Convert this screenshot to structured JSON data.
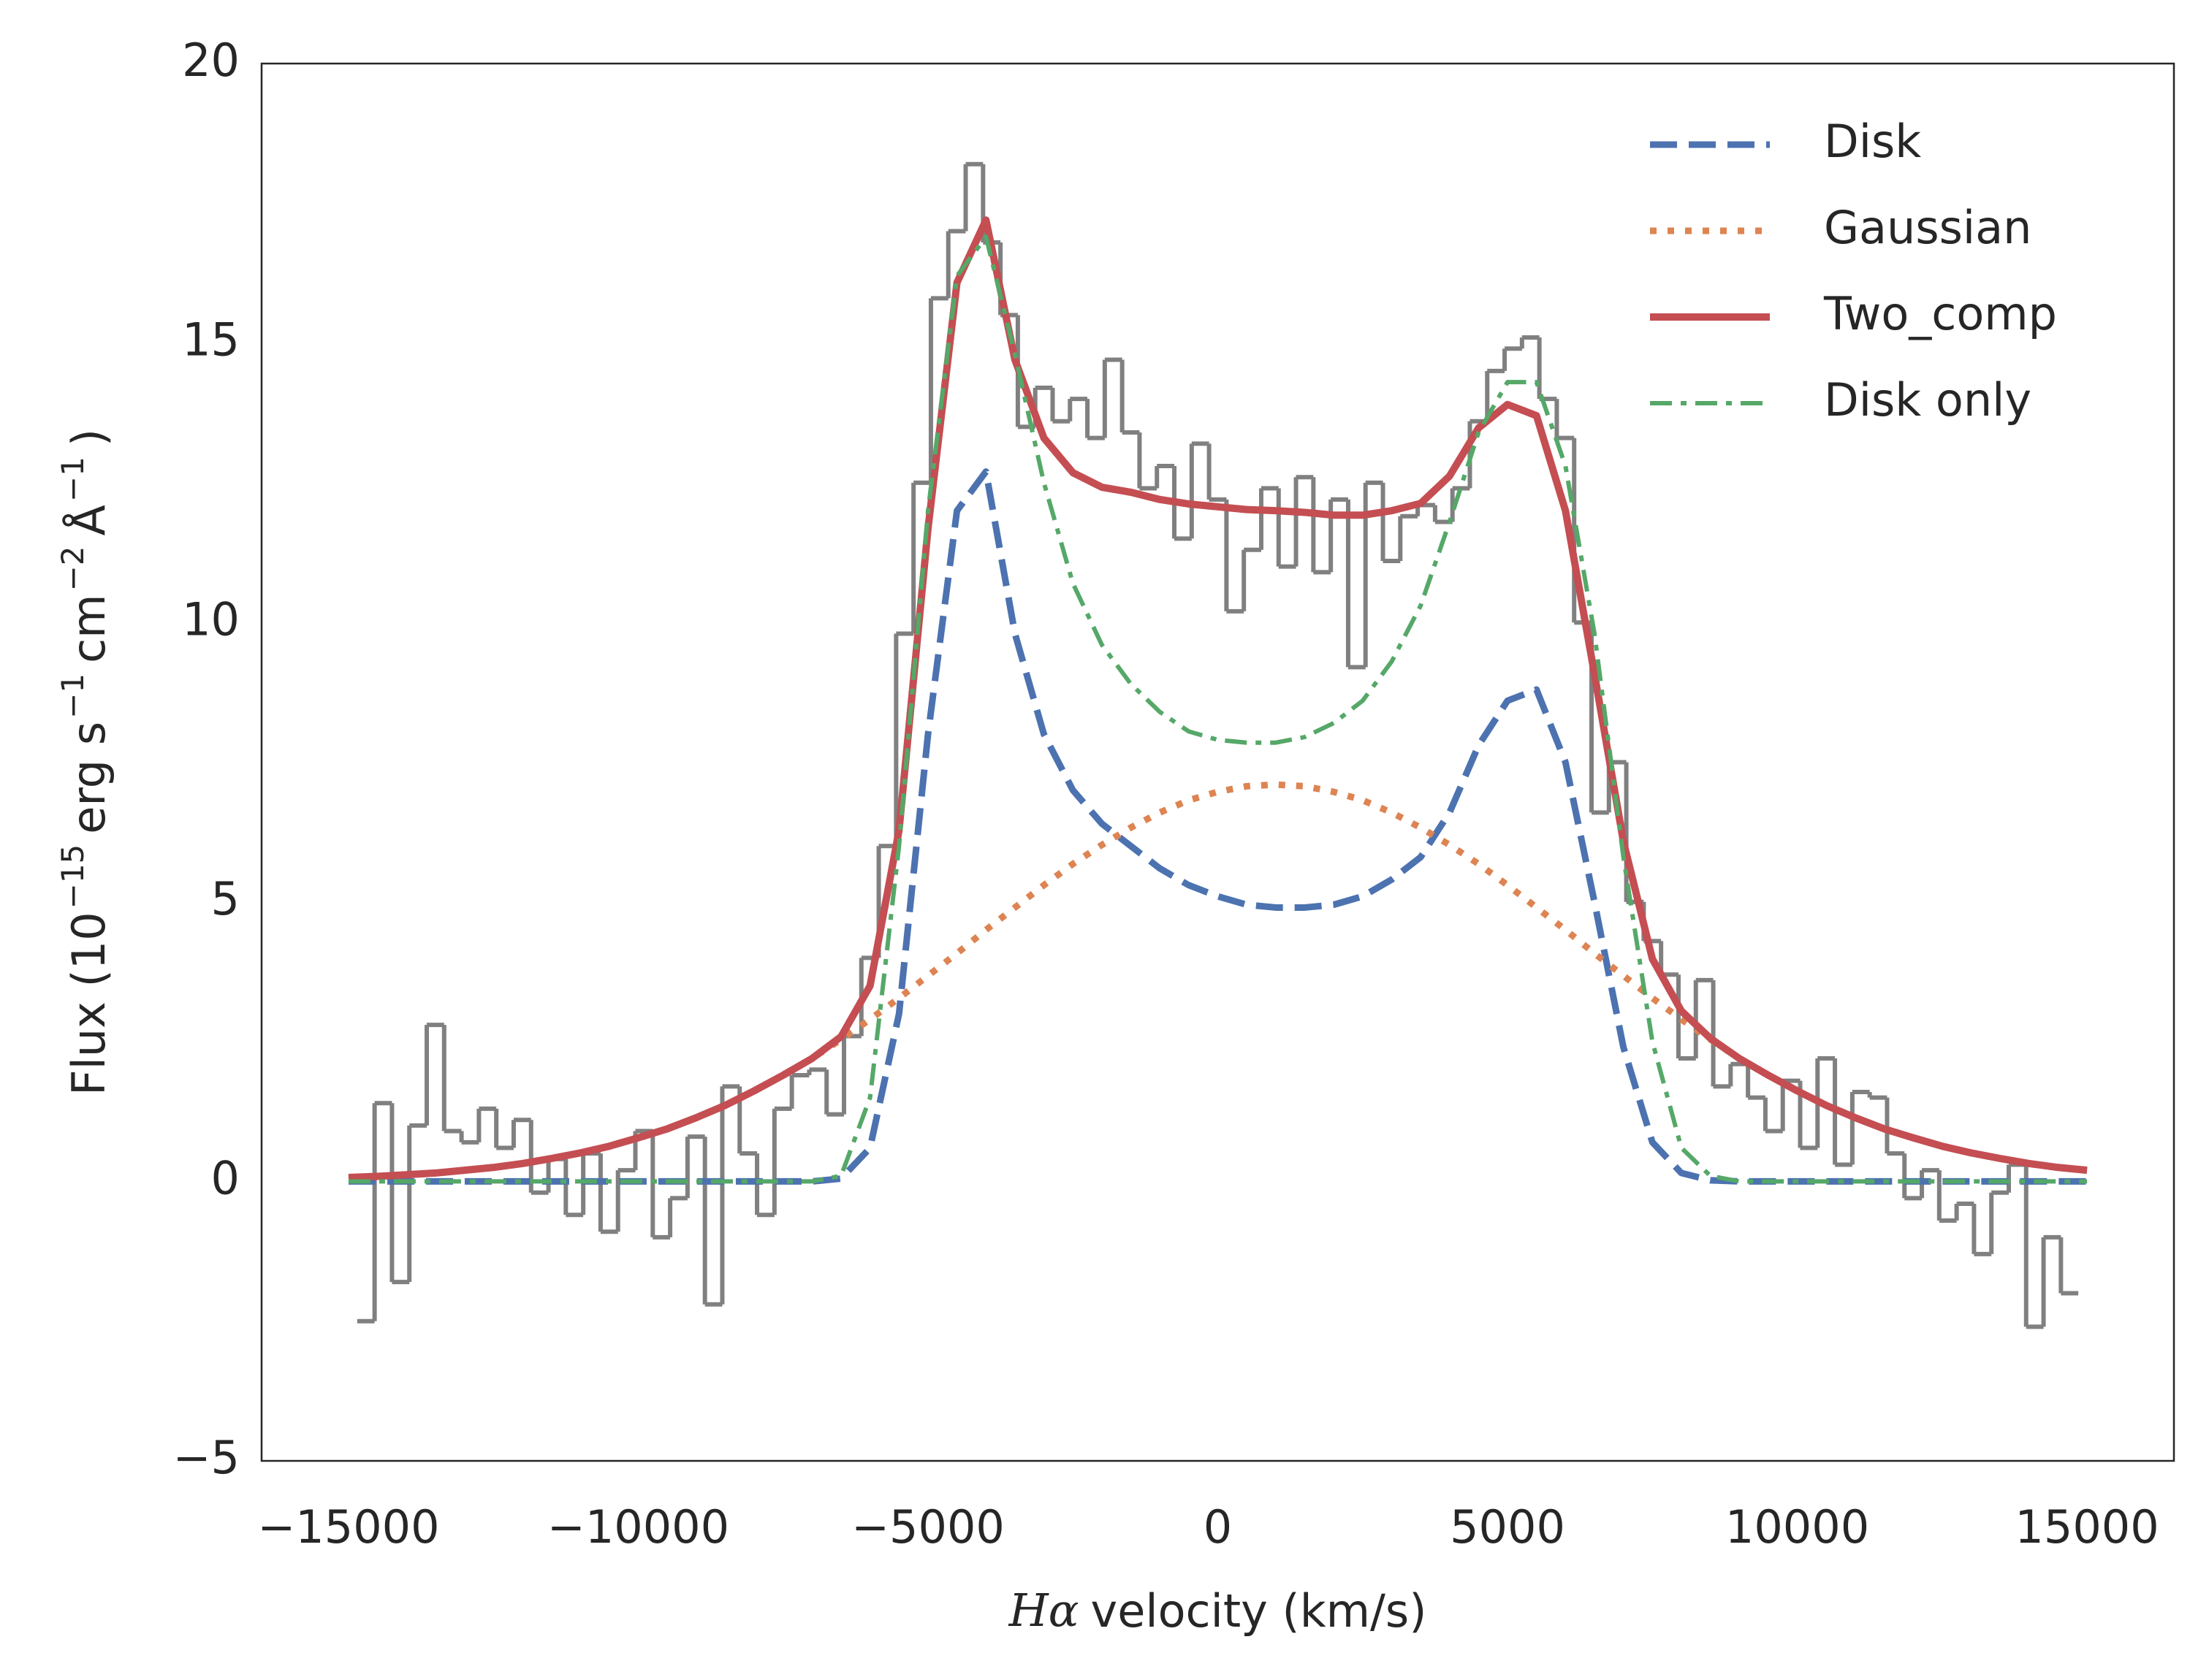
{
  "chart_data": {
    "type": "line",
    "xlabel": [
      "Hα",
      "velocity (km/s)"
    ],
    "ylabel": [
      "Flux (10",
      "−15",
      "erg s",
      "−1",
      "cm",
      "−2",
      "Å",
      "−1",
      ")"
    ],
    "xlim": [
      -16500,
      16500
    ],
    "ylim": [
      -5,
      20
    ],
    "xticks": [
      {
        "value": -15000,
        "label": "−15000"
      },
      {
        "value": -10000,
        "label": "−10000"
      },
      {
        "value": -5000,
        "label": "−5000"
      },
      0,
      5000,
      10000,
      15000
    ],
    "yticks": [
      {
        "value": -5,
        "label": "−5"
      },
      0,
      5,
      10,
      15,
      20
    ],
    "grid": false,
    "legend": "upper right",
    "spectrum": {
      "color": "#808080",
      "x": [
        -14700,
        -14400,
        -14100,
        -13800,
        -13500,
        -13200,
        -12900,
        -12600,
        -12300,
        -12000,
        -11700,
        -11400,
        -11100,
        -10800,
        -10500,
        -10200,
        -9900,
        -9600,
        -9300,
        -9000,
        -8700,
        -8400,
        -8100,
        -7800,
        -7500,
        -7200,
        -6900,
        -6600,
        -6300,
        -6000,
        -5700,
        -5400,
        -5100,
        -4800,
        -4500,
        -4200,
        -3900,
        -3600,
        -3300,
        -3000,
        -2700,
        -2400,
        -2100,
        -1800,
        -1500,
        -1200,
        -900,
        -600,
        -300,
        0,
        300,
        600,
        900,
        1200,
        1500,
        1800,
        2100,
        2400,
        2700,
        3000,
        3300,
        3600,
        3900,
        4200,
        4500,
        4800,
        5100,
        5400,
        5700,
        6000,
        6300,
        6600,
        6900,
        7200,
        7500,
        7800,
        8100,
        8400,
        8700,
        9000,
        9300,
        9600,
        9900,
        10200,
        10500,
        10800,
        11100,
        11400,
        11700,
        12000,
        12300,
        12600,
        12900,
        13200,
        13500,
        13800,
        14100,
        14400,
        14700
      ],
      "values": [
        -2.5,
        1.4,
        -1.8,
        1.0,
        2.8,
        0.9,
        0.7,
        1.3,
        0.6,
        1.1,
        -0.2,
        0.4,
        -0.6,
        0.5,
        -0.9,
        0.2,
        0.9,
        -1.0,
        -0.3,
        0.8,
        -2.2,
        1.7,
        0.5,
        -0.6,
        1.3,
        1.9,
        2.0,
        1.2,
        2.6,
        4.0,
        6.0,
        9.8,
        12.5,
        15.8,
        17.0,
        18.2,
        16.8,
        15.5,
        13.5,
        14.2,
        13.6,
        14.0,
        13.3,
        14.7,
        13.4,
        12.4,
        12.8,
        11.5,
        13.2,
        12.2,
        10.2,
        11.3,
        12.4,
        11.0,
        12.6,
        10.9,
        12.2,
        9.2,
        12.5,
        11.1,
        11.9,
        12.1,
        11.8,
        12.4,
        13.6,
        14.5,
        14.9,
        15.1,
        14.0,
        13.3,
        10.0,
        6.6,
        7.5,
        5.0,
        4.3,
        3.7,
        2.2,
        3.6,
        1.7,
        2.1,
        1.5,
        0.9,
        1.8,
        0.6,
        2.2,
        0.3,
        1.6,
        1.5,
        0.5,
        -0.3,
        0.2,
        -0.7,
        -0.4,
        -1.3,
        -0.2,
        0.3,
        -2.6,
        -1.0,
        -2.0
      ]
    },
    "x": [
      -15000,
      -14500,
      -14000,
      -13500,
      -13000,
      -12500,
      -12000,
      -11500,
      -11000,
      -10500,
      -10000,
      -9500,
      -9000,
      -8500,
      -8000,
      -7500,
      -7000,
      -6500,
      -6000,
      -5500,
      -5000,
      -4500,
      -4000,
      -3500,
      -3000,
      -2500,
      -2000,
      -1500,
      -1000,
      -500,
      0,
      500,
      1000,
      1500,
      2000,
      2500,
      3000,
      3500,
      4000,
      4500,
      5000,
      5500,
      6000,
      6500,
      7000,
      7500,
      8000,
      8500,
      9000,
      9500,
      10000,
      10500,
      11000,
      11500,
      12000,
      12500,
      13000,
      13500,
      14000,
      14500,
      15000
    ],
    "series": [
      {
        "name": "Disk",
        "color": "#4c72b0",
        "style": "dashed",
        "values": [
          0,
          0,
          0,
          0,
          0,
          0,
          0,
          0,
          0,
          0,
          0,
          0,
          0,
          0,
          0,
          0,
          0,
          0.05,
          0.6,
          3.0,
          8.0,
          12.0,
          12.7,
          9.8,
          8.0,
          7.0,
          6.4,
          6.0,
          5.6,
          5.3,
          5.1,
          4.95,
          4.9,
          4.9,
          4.95,
          5.1,
          5.4,
          5.8,
          6.6,
          7.8,
          8.6,
          8.8,
          7.5,
          5.0,
          2.4,
          0.7,
          0.15,
          0.02,
          0,
          0,
          0,
          0,
          0,
          0,
          0,
          0,
          0,
          0,
          0,
          0,
          0
        ]
      },
      {
        "name": "Gaussian",
        "color": "#dd8452",
        "style": "dotted",
        "values": [
          0.07,
          0.09,
          0.12,
          0.15,
          0.2,
          0.25,
          0.32,
          0.41,
          0.51,
          0.63,
          0.78,
          0.94,
          1.14,
          1.36,
          1.62,
          1.9,
          2.2,
          2.54,
          2.9,
          3.28,
          3.68,
          4.08,
          4.5,
          4.9,
          5.3,
          5.68,
          6.02,
          6.33,
          6.6,
          6.82,
          6.97,
          7.07,
          7.1,
          7.07,
          6.97,
          6.82,
          6.6,
          6.33,
          6.02,
          5.68,
          5.3,
          4.9,
          4.5,
          4.08,
          3.68,
          3.28,
          2.9,
          2.54,
          2.2,
          1.9,
          1.62,
          1.36,
          1.14,
          0.94,
          0.78,
          0.63,
          0.51,
          0.41,
          0.32,
          0.25,
          0.2
        ]
      },
      {
        "name": "Two_comp",
        "color": "#c44e52",
        "style": "solid",
        "values": [
          0.07,
          0.09,
          0.12,
          0.15,
          0.2,
          0.25,
          0.32,
          0.41,
          0.51,
          0.63,
          0.78,
          0.94,
          1.14,
          1.36,
          1.62,
          1.9,
          2.2,
          2.59,
          3.5,
          6.28,
          11.68,
          16.08,
          17.2,
          14.7,
          13.3,
          12.68,
          12.42,
          12.33,
          12.2,
          12.12,
          12.07,
          12.02,
          12.0,
          11.97,
          11.92,
          11.92,
          12.0,
          12.13,
          12.62,
          13.48,
          13.9,
          13.7,
          12.0,
          9.08,
          6.08,
          3.98,
          3.05,
          2.56,
          2.2,
          1.9,
          1.62,
          1.36,
          1.14,
          0.94,
          0.78,
          0.63,
          0.51,
          0.41,
          0.32,
          0.25,
          0.2
        ]
      },
      {
        "name": "Disk only",
        "color": "#55a868",
        "style": "dashdot",
        "values": [
          0,
          0,
          0,
          0,
          0,
          0,
          0,
          0,
          0,
          0,
          0,
          0,
          0,
          0,
          0,
          0,
          0,
          0.1,
          1.5,
          6.0,
          12.0,
          16.2,
          16.9,
          14.8,
          12.5,
          10.7,
          9.6,
          8.9,
          8.4,
          8.05,
          7.9,
          7.85,
          7.85,
          7.95,
          8.2,
          8.6,
          9.3,
          10.3,
          11.8,
          13.4,
          14.3,
          14.3,
          12.8,
          9.8,
          5.8,
          2.5,
          0.6,
          0.1,
          0,
          0,
          0,
          0,
          0,
          0,
          0,
          0,
          0,
          0,
          0,
          0,
          0
        ]
      }
    ]
  }
}
